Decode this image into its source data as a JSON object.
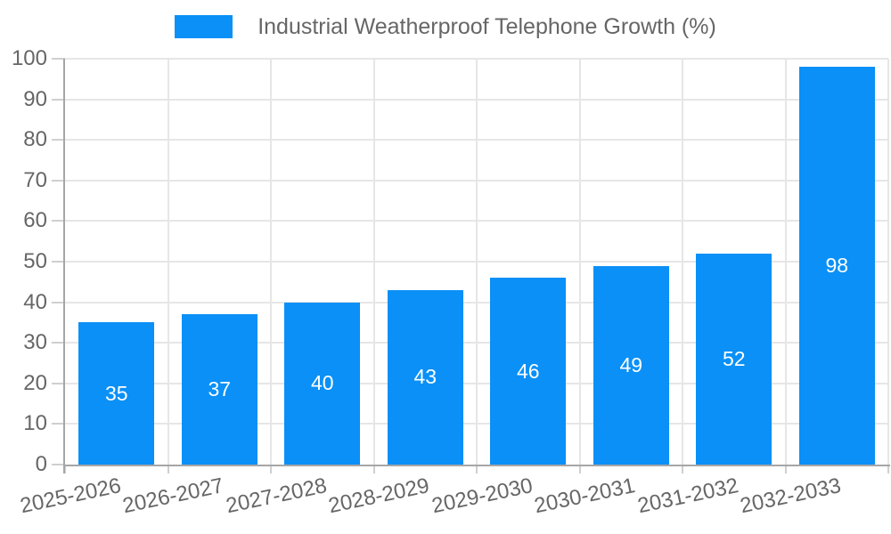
{
  "chart_data": {
    "type": "bar",
    "title": "",
    "legend": "Industrial Weatherproof Telephone Growth (%)",
    "legend_position": "top",
    "categories": [
      "2025-2026",
      "2026-2027",
      "2027-2028",
      "2028-2029",
      "2029-2030",
      "2030-2031",
      "2031-2032",
      "2032-2033"
    ],
    "values": [
      35,
      37,
      40,
      43,
      46,
      49,
      52,
      98
    ],
    "xlabel": "",
    "ylabel": "",
    "ylim": [
      0,
      100
    ],
    "ytick_step": 10,
    "yticks": [
      "0",
      "10",
      "20",
      "30",
      "40",
      "50",
      "60",
      "70",
      "80",
      "90",
      "100"
    ],
    "grid": true,
    "x_label_rotation_deg": -12,
    "colors": {
      "bar": "#0a90f7",
      "value_label": "#ffffff",
      "text": "#666666",
      "grid": "#e6e6e6",
      "tick": "#cfcfcf",
      "axis": "#a6a6a6",
      "background": "#ffffff"
    }
  }
}
